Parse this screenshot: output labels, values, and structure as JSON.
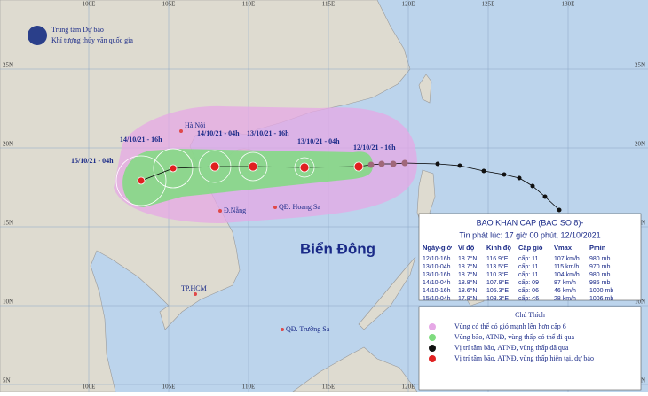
{
  "header": {
    "org_line1": "Trung tâm Dự báo",
    "org_line2": "Khí tượng thủy văn quốc gia"
  },
  "grid": {
    "lon_labels": [
      "100E",
      "105E",
      "110E",
      "115E",
      "120E",
      "125E",
      "130E"
    ],
    "lat_labels": [
      "25N",
      "20N",
      "15N",
      "10N",
      "5N"
    ]
  },
  "places": {
    "hanoi": "Hà Nội",
    "danang": "Đ.Nẵng",
    "hoangsa": "QĐ. Hoang Sa",
    "sea": "Biển Đông",
    "hcm": "TP.HCM",
    "truongsa": "QĐ. Trường Sa"
  },
  "track_labels": [
    "15/10/21 - 04h",
    "14/10/21 - 16h",
    "14/10/21 - 04h",
    "13/10/21 - 16h",
    "13/10/21 - 04h",
    "12/10/21 - 16h"
  ],
  "info": {
    "title": "BAO KHAN CAP (BAO SO 8)-",
    "subtitle": "Tin phát lúc: 17 giờ 00 phút, 12/10/2021",
    "columns": [
      "Ngày-giờ",
      "Vĩ độ",
      "Kinh độ",
      "Cấp gió",
      "Vmax",
      "Pmin"
    ],
    "rows": [
      [
        "12/10-16h",
        "18.7°N",
        "116.9°E",
        "cấp: 11",
        "107 km/h",
        "980 mb"
      ],
      [
        "13/10-04h",
        "18.7°N",
        "113.5°E",
        "cấp: 11",
        "115 km/h",
        "970 mb"
      ],
      [
        "13/10-16h",
        "18.7°N",
        "110.3°E",
        "cấp: 11",
        "104 km/h",
        "980 mb"
      ],
      [
        "14/10-04h",
        "18.8°N",
        "107.9°E",
        "cấp: 09",
        "87 km/h",
        "985 mb"
      ],
      [
        "14/10-16h",
        "18.6°N",
        "105.3°E",
        "cấp: 06",
        "46 km/h",
        "1000 mb"
      ],
      [
        "15/10-04h",
        "17.9°N",
        "103.3°E",
        "cấp: <6",
        "28 km/h",
        "1006 mb"
      ]
    ]
  },
  "legend": {
    "title": "Chú Thích",
    "items": [
      "Vùng có thể có gió mạnh lên hơn cấp 6",
      "Vùng bão, ATNĐ, vùng thấp có thể đi qua",
      "Vị trí tâm bão, ATNĐ, vùng thấp đã qua",
      "Vị trí tâm bão, ATNĐ, vùng thấp hiện tại, dự báo"
    ]
  }
}
